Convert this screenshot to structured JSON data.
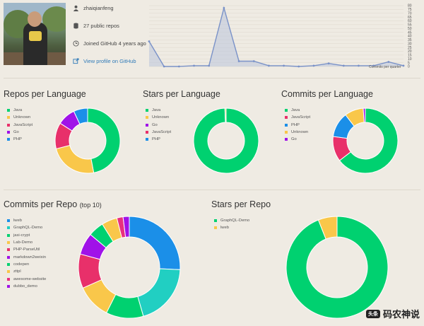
{
  "profile": {
    "username": "zhaiqianfeng",
    "repos_text": "27 public repos",
    "joined_text": "Joined GitHub 4 years ago",
    "profile_link": "View profile on GitHub"
  },
  "commits_chart": {
    "label": "Commits per quarter",
    "y_ticks": [
      "0",
      "5",
      "10",
      "15",
      "20",
      "25",
      "30",
      "35",
      "40",
      "45",
      "50",
      "55",
      "60",
      "65",
      "70",
      "75",
      "80"
    ],
    "values": [
      33,
      0,
      0,
      1,
      1,
      77,
      7,
      7,
      1,
      1,
      0,
      1,
      4,
      1,
      1,
      1,
      6,
      1
    ],
    "ymax": 80,
    "color": "#7a92c8"
  },
  "sections": {
    "repos_per_language": "Repos per Language",
    "stars_per_language": "Stars per Language",
    "commits_per_language": "Commits per Language",
    "commits_per_repo": "Commits per Repo",
    "commits_per_repo_suffix": "(top 10)",
    "stars_per_repo": "Stars per Repo"
  },
  "colors": {
    "green": "#00d170",
    "yellow": "#f9c74a",
    "magenta": "#e8306a",
    "purple": "#a012e8",
    "blue": "#1b8fe8",
    "teal": "#21cfc2",
    "pink": "#e8307f"
  },
  "chart_data": [
    {
      "id": "repos-per-language",
      "type": "pie",
      "legend": [
        {
          "name": "Java",
          "color": "#00d170",
          "value": 47
        },
        {
          "name": "Unknown",
          "color": "#f9c74a",
          "value": 24
        },
        {
          "name": "JavaScript",
          "color": "#e8306a",
          "value": 13
        },
        {
          "name": "Go",
          "color": "#a012e8",
          "value": 9
        },
        {
          "name": "PHP",
          "color": "#1b8fe8",
          "value": 7
        }
      ]
    },
    {
      "id": "stars-per-language",
      "type": "pie",
      "legend": [
        {
          "name": "Java",
          "color": "#00d170",
          "value": 99.4
        },
        {
          "name": "Unknown",
          "color": "#f9c74a",
          "value": 0.6
        },
        {
          "name": "Go",
          "color": "#a012e8",
          "value": 0
        },
        {
          "name": "JavaScript",
          "color": "#e8306a",
          "value": 0
        },
        {
          "name": "PHP",
          "color": "#1b8fe8",
          "value": 0
        }
      ]
    },
    {
      "id": "commits-per-language",
      "type": "pie",
      "legend": [
        {
          "name": "Java",
          "color": "#00d170",
          "value": 62
        },
        {
          "name": "JavaScript",
          "color": "#e8306a",
          "value": 12
        },
        {
          "name": "PHP",
          "color": "#1b8fe8",
          "value": 12
        },
        {
          "name": "Unknown",
          "color": "#f9c74a",
          "value": 9
        },
        {
          "name": "Go",
          "color": "#a012e8",
          "value": 1
        }
      ]
    },
    {
      "id": "commits-per-repo",
      "type": "pie",
      "legend": [
        {
          "name": "lweb",
          "color": "#1b8fe8",
          "value": 26
        },
        {
          "name": "GraphQL-Demo",
          "color": "#21cfc2",
          "value": 20
        },
        {
          "name": "jasi-crypt",
          "color": "#00d170",
          "value": 12
        },
        {
          "name": "Lab-Demo",
          "color": "#f9c74a",
          "value": 11
        },
        {
          "name": "PHP-ParseUtil",
          "color": "#e8306a",
          "value": 11
        },
        {
          "name": "markdown2weixin",
          "color": "#a012e8",
          "value": 7
        },
        {
          "name": "codepen",
          "color": "#00d170",
          "value": 5
        },
        {
          "name": "zttpl",
          "color": "#f9c74a",
          "value": 5
        },
        {
          "name": "awesome-website",
          "color": "#e8307f",
          "value": 2
        },
        {
          "name": "dubbo_demo",
          "color": "#a012e8",
          "value": 2
        }
      ]
    },
    {
      "id": "stars-per-repo",
      "type": "pie",
      "legend": [
        {
          "name": "GraphQL-Demo",
          "color": "#00d170",
          "value": 94
        },
        {
          "name": "lweb",
          "color": "#f9c74a",
          "value": 6
        }
      ]
    }
  ],
  "watermark": {
    "badge": "头条",
    "text": "码农神说"
  }
}
